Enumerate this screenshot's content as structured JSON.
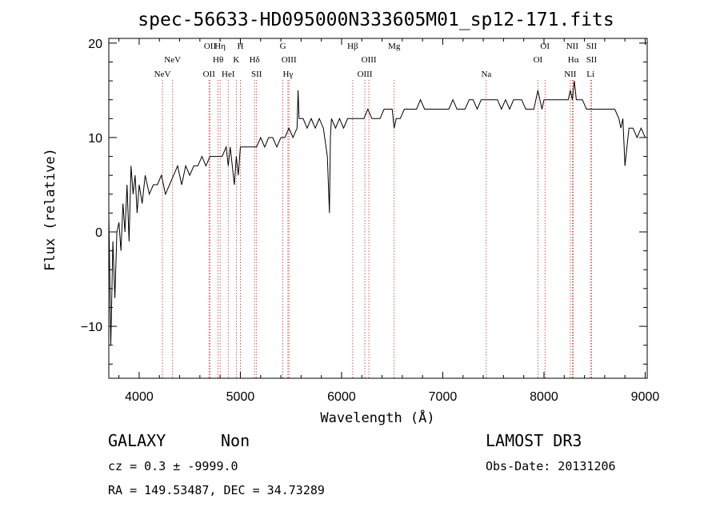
{
  "chart_data": {
    "type": "line",
    "title": "spec-56633-HD095000N333605M01_sp12-171.fits",
    "xlabel": "Wavelength (Å)",
    "ylabel": "Flux (relative)",
    "xlim": [
      3700,
      9020
    ],
    "ylim": [
      -15.5,
      20.5
    ],
    "xticks": [
      4000,
      5000,
      6000,
      7000,
      8000,
      9000
    ],
    "yticks": [
      -10,
      0,
      10,
      20
    ],
    "grid": false,
    "series": [
      {
        "x": [
          3700,
          3720,
          3740,
          3760,
          3780,
          3800,
          3820,
          3840,
          3860,
          3880,
          3900,
          3920,
          3940,
          3960,
          3980,
          4000,
          4030,
          4060,
          4100,
          4140,
          4180,
          4220,
          4260,
          4300,
          4340,
          4380,
          4420,
          4460,
          4500,
          4540,
          4580,
          4620,
          4660,
          4700,
          4740,
          4780,
          4820,
          4860,
          4880,
          4900,
          4940,
          4960,
          4980,
          5000,
          5040,
          5080,
          5120,
          5160,
          5200,
          5240,
          5280,
          5320,
          5360,
          5400,
          5440,
          5480,
          5520,
          5560,
          5570,
          5580,
          5620,
          5660,
          5700,
          5740,
          5780,
          5820,
          5860,
          5880,
          5890,
          5900,
          5940,
          5980,
          6020,
          6060,
          6100,
          6140,
          6180,
          6220,
          6260,
          6300,
          6340,
          6380,
          6420,
          6460,
          6500,
          6520,
          6540,
          6580,
          6620,
          6660,
          6700,
          6740,
          6780,
          6820,
          6860,
          6900,
          6940,
          6980,
          7020,
          7060,
          7100,
          7140,
          7180,
          7220,
          7260,
          7300,
          7340,
          7380,
          7420,
          7460,
          7500,
          7540,
          7580,
          7620,
          7660,
          7700,
          7740,
          7780,
          7820,
          7860,
          7900,
          7940,
          7960,
          7980,
          8000,
          8040,
          8080,
          8120,
          8160,
          8200,
          8240,
          8260,
          8280,
          8300,
          8320,
          8340,
          8360,
          8380,
          8420,
          8460,
          8500,
          8540,
          8580,
          8620,
          8660,
          8700,
          8740,
          8760,
          8780,
          8800,
          8840,
          8880,
          8920,
          8960,
          9000
        ],
        "y": [
          2,
          -12,
          -1,
          -7,
          0,
          1,
          -2,
          3,
          0,
          5,
          -1,
          7,
          4,
          6,
          2,
          5,
          3,
          6,
          4,
          5,
          5,
          6,
          4,
          5,
          6,
          7,
          5,
          7,
          6,
          7,
          7,
          8,
          7,
          8,
          8,
          8,
          8,
          9,
          7,
          9,
          5,
          8,
          6,
          9,
          9,
          9,
          9,
          9,
          10,
          9,
          10,
          10,
          9,
          10,
          10,
          11,
          10,
          11,
          15,
          12,
          12,
          11,
          12,
          11,
          12,
          11,
          8,
          2,
          10,
          12,
          11,
          12,
          11,
          12,
          12,
          12,
          12,
          12,
          13,
          12,
          12,
          12,
          13,
          13,
          13,
          11,
          12,
          12,
          13,
          13,
          13,
          13,
          14,
          13,
          13,
          13,
          13,
          13,
          13,
          13,
          14,
          13,
          13,
          13,
          14,
          14,
          13,
          14,
          14,
          14,
          14,
          14,
          13,
          14,
          13,
          14,
          14,
          14,
          13,
          13,
          13,
          15,
          14,
          13,
          14,
          14,
          14,
          14,
          14,
          14,
          14,
          15,
          14,
          16,
          14,
          14,
          14,
          14,
          13,
          13,
          13,
          13,
          13,
          13,
          13,
          13,
          12,
          11,
          12,
          7,
          11,
          11,
          10,
          11,
          10
        ]
      }
    ],
    "annotations": [
      {
        "label": "NeV",
        "wavelength": 4230,
        "row": 3
      },
      {
        "label": "NeV",
        "wavelength": 4330,
        "row": 1
      },
      {
        "label": "OII",
        "wavelength": 4690,
        "row": 3
      },
      {
        "label": "OII",
        "wavelength": 4700,
        "row": 0
      },
      {
        "label": "Hθ",
        "wavelength": 4780,
        "row": 1
      },
      {
        "label": "Hη",
        "wavelength": 4800,
        "row": 0
      },
      {
        "label": "HeI",
        "wavelength": 4880,
        "row": 3
      },
      {
        "label": "K",
        "wavelength": 4960,
        "row": 1
      },
      {
        "label": "H",
        "wavelength": 5000,
        "row": 0
      },
      {
        "label": "Hδ",
        "wavelength": 5140,
        "row": 1
      },
      {
        "label": "SII",
        "wavelength": 5160,
        "row": 3
      },
      {
        "label": "G",
        "wavelength": 5420,
        "row": 0
      },
      {
        "label": "OIII",
        "wavelength": 5480,
        "row": 1
      },
      {
        "label": "Hγ",
        "wavelength": 5470,
        "row": 3
      },
      {
        "label": "Hβ",
        "wavelength": 6110,
        "row": 0
      },
      {
        "label": "OIII",
        "wavelength": 6270,
        "row": 1
      },
      {
        "label": "OIII",
        "wavelength": 6230,
        "row": 3
      },
      {
        "label": "Mg",
        "wavelength": 6520,
        "row": 0
      },
      {
        "label": "Na",
        "wavelength": 7430,
        "row": 3
      },
      {
        "label": "OI",
        "wavelength": 8010,
        "row": 0
      },
      {
        "label": "OI",
        "wavelength": 7940,
        "row": 1
      },
      {
        "label": "NII",
        "wavelength": 8280,
        "row": 0
      },
      {
        "label": "Hα",
        "wavelength": 8290,
        "row": 1
      },
      {
        "label": "NII",
        "wavelength": 8260,
        "row": 3
      },
      {
        "label": "SII",
        "wavelength": 8470,
        "row": 0
      },
      {
        "label": "SII",
        "wavelength": 8470,
        "row": 1
      },
      {
        "label": "Li",
        "wavelength": 8460,
        "row": 3
      }
    ],
    "line_color": "#000000",
    "marker_line_color": "#c0392b"
  },
  "info": {
    "object_class": "GALAXY",
    "subclass": "Non",
    "redshift_line": "cz = 0.3 ± -9999.0",
    "coords_line": "RA = 149.53487, DEC =  34.73289",
    "survey": "LAMOST DR3",
    "obs_date_line": "Obs-Date: 20131206"
  }
}
